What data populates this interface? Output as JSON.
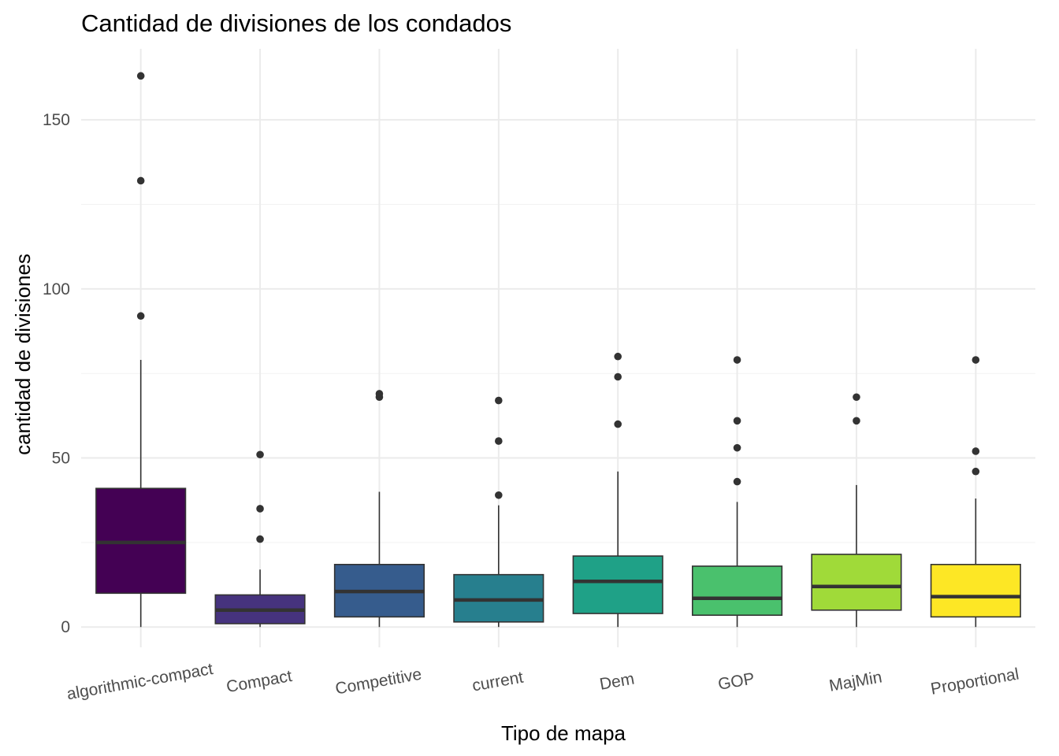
{
  "chart_data": {
    "type": "boxplot",
    "title": "Cantidad de divisiones de los condados",
    "xlabel": "Tipo de mapa",
    "ylabel": "cantidad de divisiones",
    "ylim": [
      -6,
      171
    ],
    "yticks": [
      0,
      50,
      100,
      150
    ],
    "grid": true,
    "legend": "none",
    "categories": [
      "algorithmic-compact",
      "Compact",
      "Competitive",
      "current",
      "Dem",
      "GOP",
      "MajMin",
      "Proportional"
    ],
    "boxes": [
      {
        "category": "algorithmic-compact",
        "min": 0,
        "q1": 10,
        "median": 25,
        "q3": 41,
        "max": 79,
        "outliers": [
          92,
          132,
          163
        ],
        "color": "#440154"
      },
      {
        "category": "Compact",
        "min": 0,
        "q1": 1,
        "median": 5,
        "q3": 9.5,
        "max": 17,
        "outliers": [
          26,
          35,
          51
        ],
        "color": "#46337e"
      },
      {
        "category": "Competitive",
        "min": 0,
        "q1": 3,
        "median": 10.5,
        "q3": 18.5,
        "max": 40,
        "outliers": [
          68,
          69
        ],
        "color": "#365c8d"
      },
      {
        "category": "current",
        "min": 0,
        "q1": 1.5,
        "median": 8,
        "q3": 15.5,
        "max": 36,
        "outliers": [
          39,
          55,
          67
        ],
        "color": "#277f8e"
      },
      {
        "category": "Dem",
        "min": 0,
        "q1": 4,
        "median": 13.5,
        "q3": 21,
        "max": 46,
        "outliers": [
          60,
          74,
          80
        ],
        "color": "#1fa187"
      },
      {
        "category": "GOP",
        "min": 0,
        "q1": 3.5,
        "median": 8.5,
        "q3": 18,
        "max": 37,
        "outliers": [
          43,
          53,
          61,
          79
        ],
        "color": "#4ac16d"
      },
      {
        "category": "MajMin",
        "min": 0,
        "q1": 5,
        "median": 12,
        "q3": 21.5,
        "max": 42,
        "outliers": [
          61,
          68
        ],
        "color": "#a0da39"
      },
      {
        "category": "Proportional",
        "min": 0,
        "q1": 3,
        "median": 9,
        "q3": 18.5,
        "max": 38,
        "outliers": [
          46,
          52,
          79
        ],
        "color": "#fde725"
      }
    ]
  }
}
